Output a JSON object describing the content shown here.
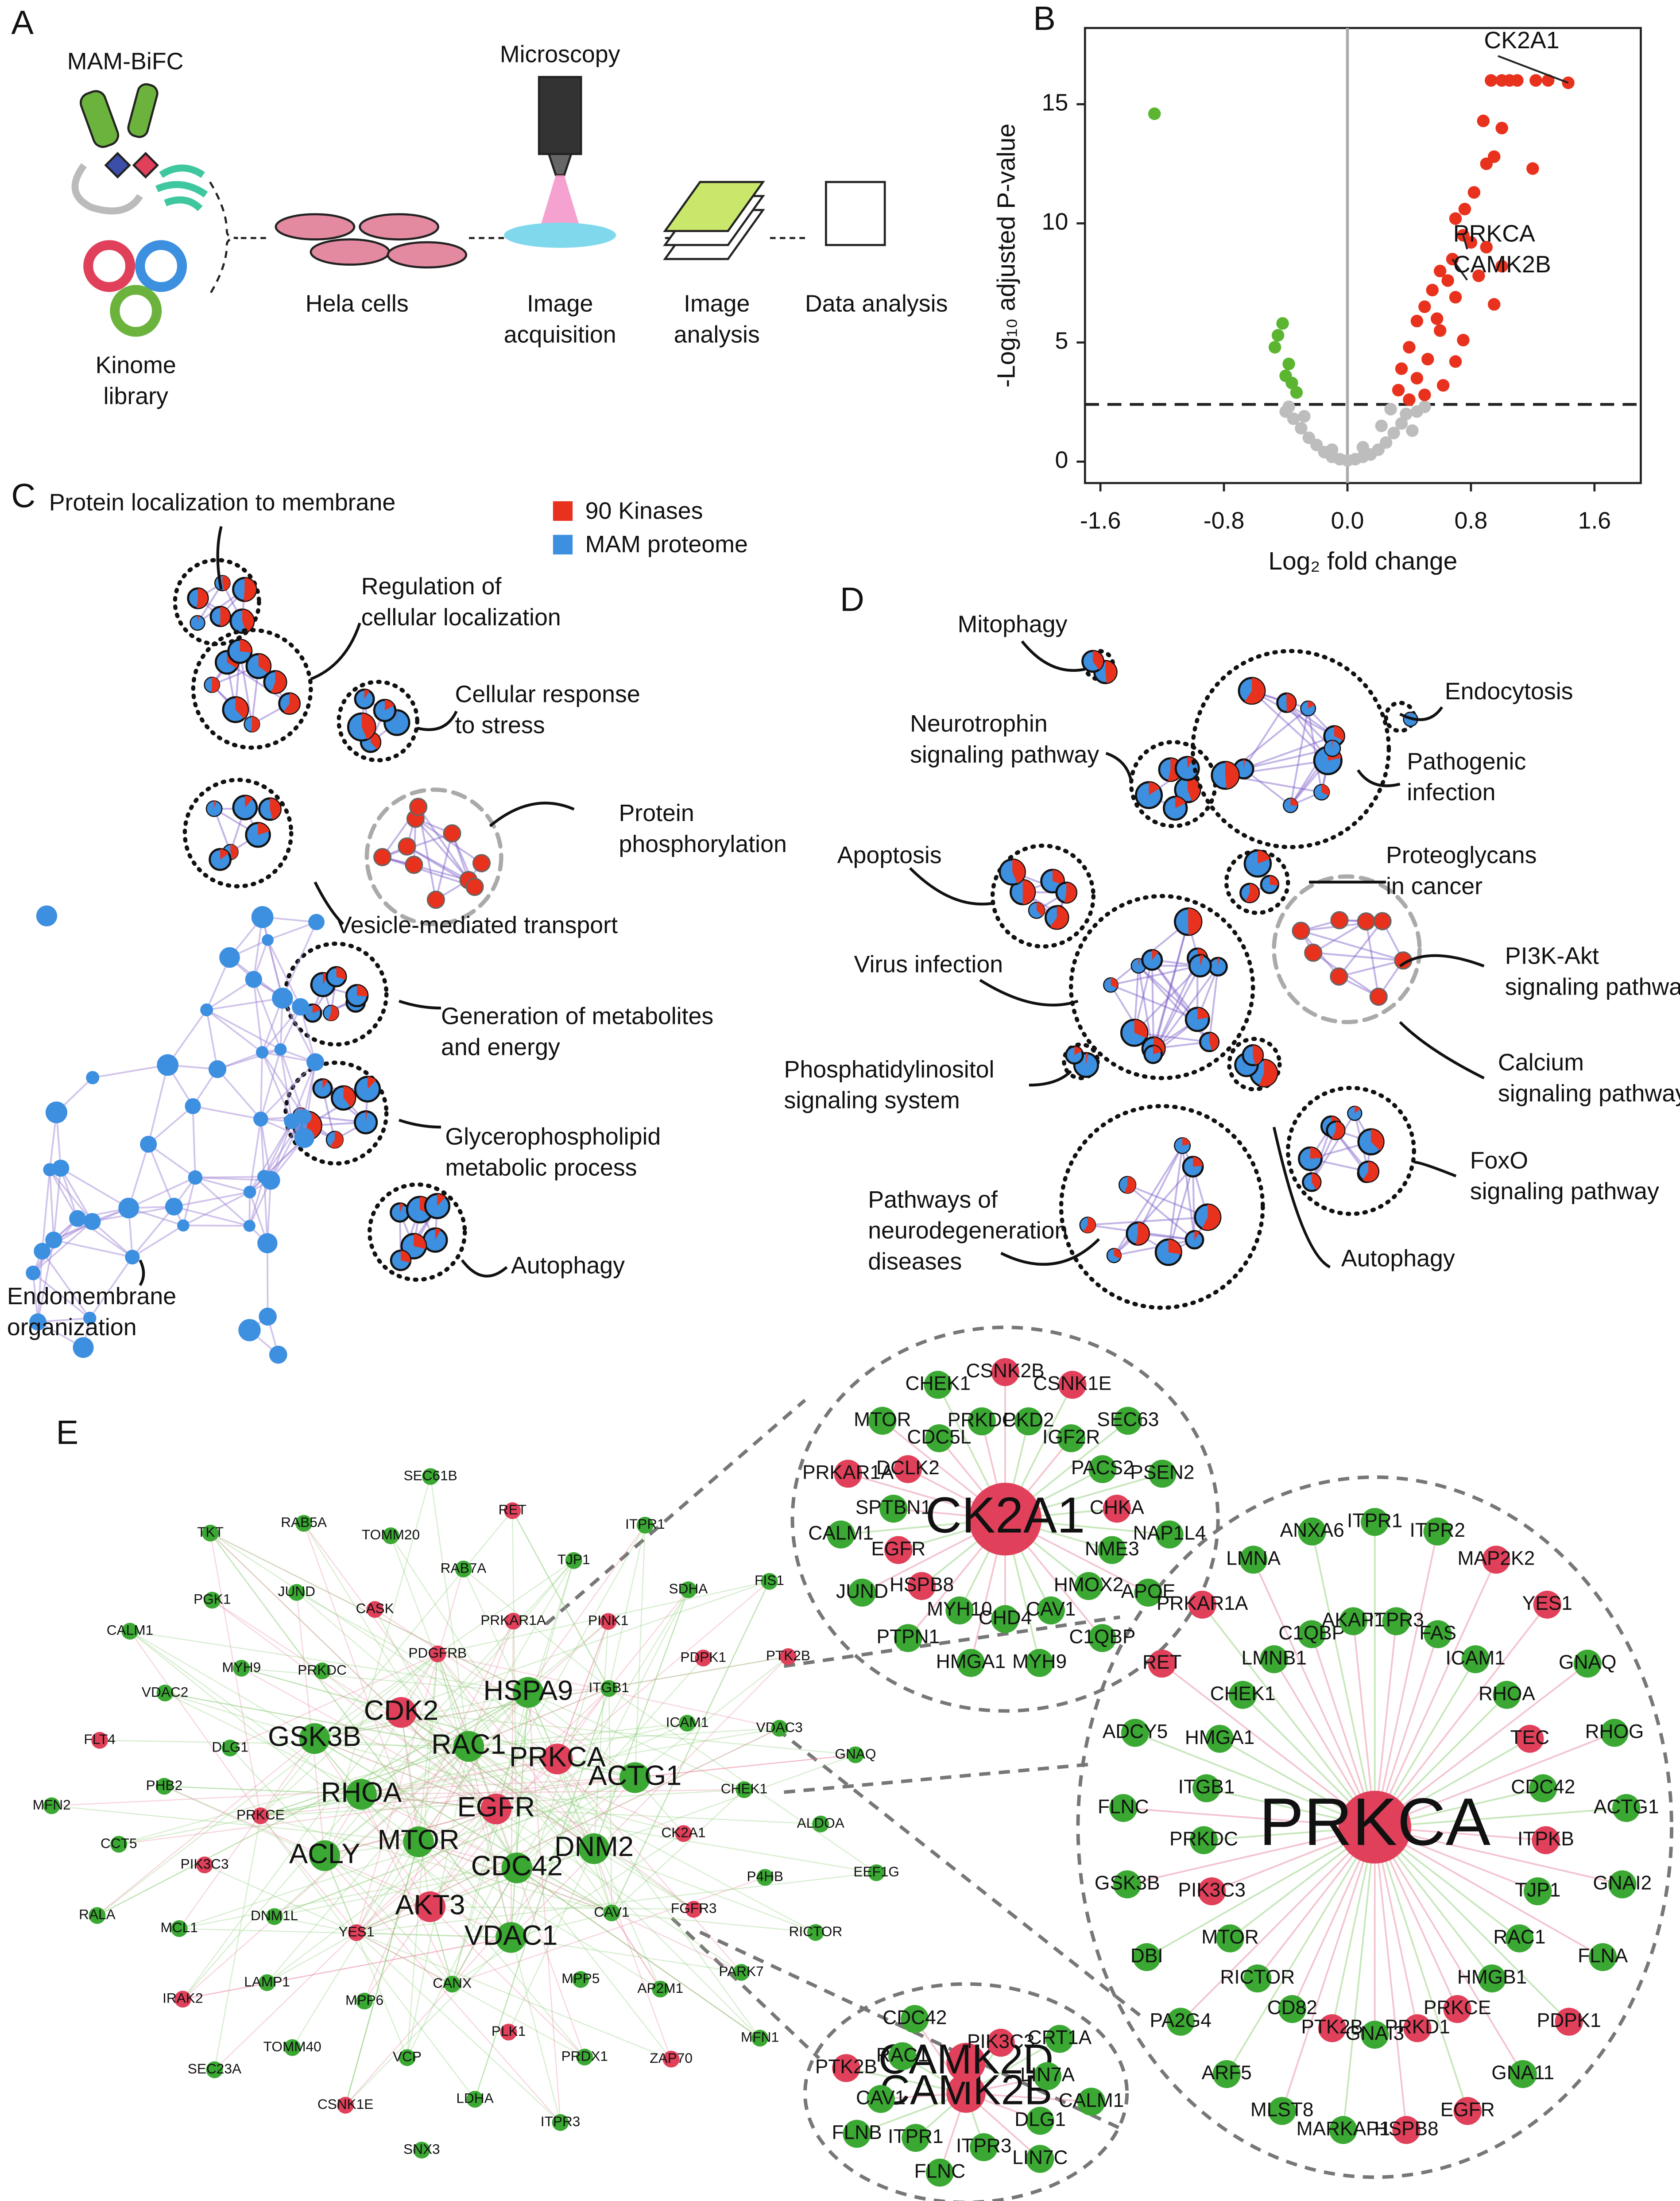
{
  "panel_a": {
    "label": "A",
    "bifc": "MAM-BiFC",
    "library": [
      "Kinome",
      "library"
    ],
    "microscopy": "Microscopy",
    "steps": [
      [
        "Hela cells"
      ],
      [
        "Image",
        "acquisition"
      ],
      [
        "Image",
        "analysis"
      ],
      [
        "Data analysis"
      ]
    ]
  },
  "chart_data": {
    "type": "scatter",
    "panel_label": "B",
    "x_label": "Log₂ fold change",
    "y_label": "-Log₁₀ adjusted P-value",
    "xlim": [
      -1.7,
      1.9
    ],
    "ylim": [
      -0.9,
      18.2
    ],
    "xticks": [
      -1.6,
      -0.8,
      {
        "value": 0,
        "label": "0.0"
      },
      0.8,
      1.6
    ],
    "yticks": [
      0,
      5,
      10,
      15
    ],
    "threshold": 2.4,
    "zero_line": true,
    "series": [
      {
        "color": "#bdbdbd",
        "x": [
          -0.4,
          -0.35,
          -0.3,
          -0.25,
          -0.2,
          -0.15,
          -0.1,
          -0.05,
          0,
          0.05,
          0.1,
          0.15,
          0.2,
          0.25,
          0.3,
          0.35,
          0.38,
          0.28,
          0.45,
          0.5,
          -0.28,
          0.22,
          0.1,
          -0.1,
          -0.38,
          0.42
        ],
        "values": [
          2.1,
          1.8,
          1.4,
          1.0,
          0.7,
          0.4,
          0.2,
          0.1,
          0.05,
          0.1,
          0.2,
          0.3,
          0.5,
          0.8,
          1.2,
          1.6,
          2.0,
          2.2,
          2.1,
          2.3,
          1.9,
          1.5,
          0.6,
          0.5,
          2.3,
          1.3
        ]
      },
      {
        "color": "#5cb531",
        "x": [
          -1.25,
          -0.42,
          -0.45,
          -0.47,
          -0.38,
          -0.36,
          -0.33,
          -0.4
        ],
        "values": [
          14.6,
          5.8,
          5.3,
          4.8,
          4.1,
          3.3,
          2.9,
          3.6
        ]
      },
      {
        "color": "#e8321e",
        "x": [
          1.43,
          1.3,
          1.0,
          1.05,
          1.1,
          1.22,
          0.93,
          0.88,
          1.0,
          0.95,
          0.9,
          1.2,
          0.82,
          0.76,
          0.7,
          0.75,
          0.68,
          0.8,
          0.9,
          0.6,
          0.65,
          0.85,
          0.55,
          0.7,
          0.5,
          0.95,
          0.45,
          0.6,
          0.75,
          0.4,
          0.52,
          0.35,
          0.45,
          0.62,
          0.33,
          0.5,
          0.4,
          0.7,
          0.58,
          1.0
        ],
        "values": [
          15.9,
          16,
          16,
          16,
          16,
          16,
          16,
          14.3,
          14,
          12.8,
          12.5,
          12.3,
          11.3,
          10.6,
          10.2,
          9.5,
          8.5,
          9.2,
          9.0,
          8.0,
          7.6,
          7.8,
          7.2,
          6.9,
          6.5,
          6.6,
          5.9,
          5.5,
          5.1,
          4.8,
          4.3,
          3.9,
          3.5,
          3.2,
          3.0,
          2.8,
          2.6,
          4.2,
          6.0,
          8.2
        ]
      }
    ],
    "annotations": [
      {
        "text": "CK2A1",
        "x": 1.43,
        "y": 15.9
      },
      {
        "text": "PRKCA",
        "x": 0.75,
        "y": 9.5
      },
      {
        "text": "CAMK2B",
        "x": 0.68,
        "y": 8.5
      }
    ]
  },
  "panel_c": {
    "label": "C",
    "legend": [
      {
        "name": "90 Kinases",
        "color": "#e8321e"
      },
      {
        "name": "MAM proteome",
        "color": "#3d8fe0"
      }
    ],
    "labels": [
      [
        "Protein localization to membrane"
      ],
      [
        "Regulation of",
        "cellular localization"
      ],
      [
        "Cellular response",
        "to stress"
      ],
      [
        "Protein",
        "phosphorylation"
      ],
      [
        "Vesicle-mediated transport"
      ],
      [
        "Generation of metabolites",
        "and energy"
      ],
      [
        "Glycerophospholipid",
        "metabolic process"
      ],
      [
        "Autophagy"
      ],
      [
        "Endomembrane",
        "organization"
      ]
    ]
  },
  "panel_d": {
    "label": "D",
    "labels": [
      [
        "Mitophagy"
      ],
      [
        "Neurotrophin",
        "signaling pathway"
      ],
      [
        "Endocytosis"
      ],
      [
        "Pathogenic",
        "infection"
      ],
      [
        "Apoptosis"
      ],
      [
        "Proteoglycans",
        "in cancer"
      ],
      [
        "Virus infection"
      ],
      [
        "PI3K-Akt",
        "signaling pathway"
      ],
      [
        "Phosphatidylinositol",
        "signaling system"
      ],
      [
        "Calcium",
        "signaling pathway"
      ],
      [
        "FoxO",
        "signaling pathway"
      ],
      [
        "Pathways of",
        "neurodegeneration",
        "diseases"
      ],
      [
        "Autophagy"
      ]
    ]
  },
  "panel_e": {
    "label": "E",
    "kinase_color": "#e0405a",
    "protein_color": "#3aa832",
    "main": [
      "EGFR",
      "MTOR",
      "RAC1",
      "CDC42",
      "RHOA",
      "PRKCA",
      "AKT3",
      "CDK2",
      "DNM2",
      "ACLY",
      "HSPA9",
      "VDAC1",
      "GSK3B",
      "ACTG1",
      "YES1",
      "PDGFRB",
      "CAV1",
      "PRKCE",
      "ITGB1",
      "CANX",
      "PRKDC",
      "CK2A1",
      "DNM1L",
      "PRKAR1A",
      "MPP5",
      "DLG1",
      "ICAM1",
      "MPP6",
      "CASK",
      "FGFR3",
      "PIK3C3",
      "PINK1",
      "PLK1",
      "MYH9",
      "CHEK1",
      "LAMP1",
      "RAB7A",
      "AP2M1",
      "PHB2",
      "PDPK1",
      "VCP",
      "JUND",
      "P4HB",
      "MCL1",
      "TJP1",
      "PRDX1",
      "VDAC2",
      "VDAC3",
      "TOMM40",
      "TOMM20",
      "PARK7",
      "CCT5",
      "SDHA",
      "LDHA",
      "PGK1",
      "ALDOA",
      "IRAK2",
      "RET",
      "ZAP70",
      "FLT4",
      "PTK2B",
      "CSNK1E",
      "RAB5A",
      "RICTOR",
      "RALA",
      "ITPR1",
      "ITPR3",
      "CALM1",
      "GNAQ",
      "SEC23A",
      "SEC61B",
      "MFN1",
      "MFN2",
      "FIS1",
      "SNX3",
      "TKT",
      "EEF1G"
    ],
    "main_kinase": [
      true,
      false,
      false,
      false,
      false,
      true,
      true,
      true,
      false,
      false,
      false,
      false,
      false,
      false,
      true,
      true,
      false,
      true,
      false,
      false,
      false,
      true,
      false,
      true,
      false,
      false,
      false,
      false,
      true,
      true,
      true,
      true,
      true,
      false,
      false,
      false,
      false,
      false,
      false,
      true,
      false,
      false,
      false,
      false,
      false,
      false,
      false,
      false,
      false,
      false,
      false,
      false,
      false,
      false,
      false,
      false,
      true,
      true,
      true,
      true,
      true,
      true,
      false,
      false,
      false,
      false,
      false,
      false,
      false,
      false,
      false,
      false,
      false,
      false,
      false,
      false,
      false
    ],
    "insets": [
      {
        "nodes": [
          "CK2A1",
          "CSNK2B",
          "PKD2",
          "CSNK1E",
          "IGF2R",
          "SEC63",
          "PACS2",
          "PSEN2",
          "CHKA",
          "NAP1L4",
          "NME3",
          "APOE",
          "HMOX2",
          "C1QBP",
          "CAV1",
          "MYH9",
          "CHD4",
          "HMGA1",
          "MYH10",
          "PTPN1",
          "HSPB8",
          "JUND",
          "EGFR",
          "CALM1",
          "SPTBN1",
          "PRKAR1A",
          "DCLK2",
          "MTOR",
          "CDC5L",
          "CHEK1",
          "PRKDC"
        ],
        "kinase": [
          true,
          true,
          false,
          true,
          false,
          false,
          false,
          false,
          true,
          false,
          false,
          false,
          false,
          false,
          false,
          false,
          false,
          false,
          false,
          false,
          true,
          false,
          true,
          false,
          false,
          true,
          true,
          false,
          false,
          false,
          false
        ]
      },
      {
        "nodes": [
          "PRKCA",
          "ITPR1",
          "ITPR3",
          "ITPR2",
          "FAS",
          "MAP2K2",
          "ICAM1",
          "YES1",
          "RHOA",
          "GNAQ",
          "TEC",
          "RHOG",
          "CDC42",
          "ACTG1",
          "ITPKB",
          "GNAI2",
          "TJP1",
          "FLNA",
          "RAC1",
          "PDPK1",
          "HMGB1",
          "GNA11",
          "PRKCE",
          "EGFR",
          "PRKD1",
          "HSPB8",
          "GNAI3",
          "MARKAP1",
          "PTK2B",
          "MLST8",
          "CD82",
          "ARF5",
          "RICTOR",
          "PA2G4",
          "MTOR",
          "DBI",
          "PIK3C3",
          "GSK3B",
          "PRKDC",
          "FLNC",
          "ITGB1",
          "ADCY5",
          "HMGA1",
          "RET",
          "CHEK1",
          "PRKAR1A",
          "LMNB1",
          "LMNA",
          "C1QBP",
          "ANXA6",
          "AKAP1"
        ],
        "kinase": [
          true,
          false,
          false,
          false,
          false,
          true,
          false,
          true,
          false,
          false,
          true,
          false,
          false,
          false,
          true,
          false,
          false,
          false,
          false,
          true,
          false,
          false,
          true,
          true,
          true,
          true,
          false,
          false,
          true,
          false,
          false,
          false,
          false,
          false,
          false,
          false,
          true,
          false,
          false,
          false,
          false,
          false,
          false,
          true,
          false,
          true,
          false,
          false,
          false,
          false,
          false
        ]
      },
      {
        "nodes": [
          "CAMK2B",
          "CAMK2D",
          "PIK3C3",
          "CRT1A",
          "LIN7A",
          "CALM1",
          "DLG1",
          "LIN7C",
          "ITPR3",
          "FLNC",
          "ITPR1",
          "FLNB",
          "CAV1",
          "PTK2B",
          "RAC1",
          "CDC42"
        ],
        "kinase": [
          true,
          true,
          true,
          false,
          false,
          false,
          false,
          false,
          false,
          false,
          false,
          false,
          false,
          true,
          false,
          false
        ]
      }
    ]
  }
}
